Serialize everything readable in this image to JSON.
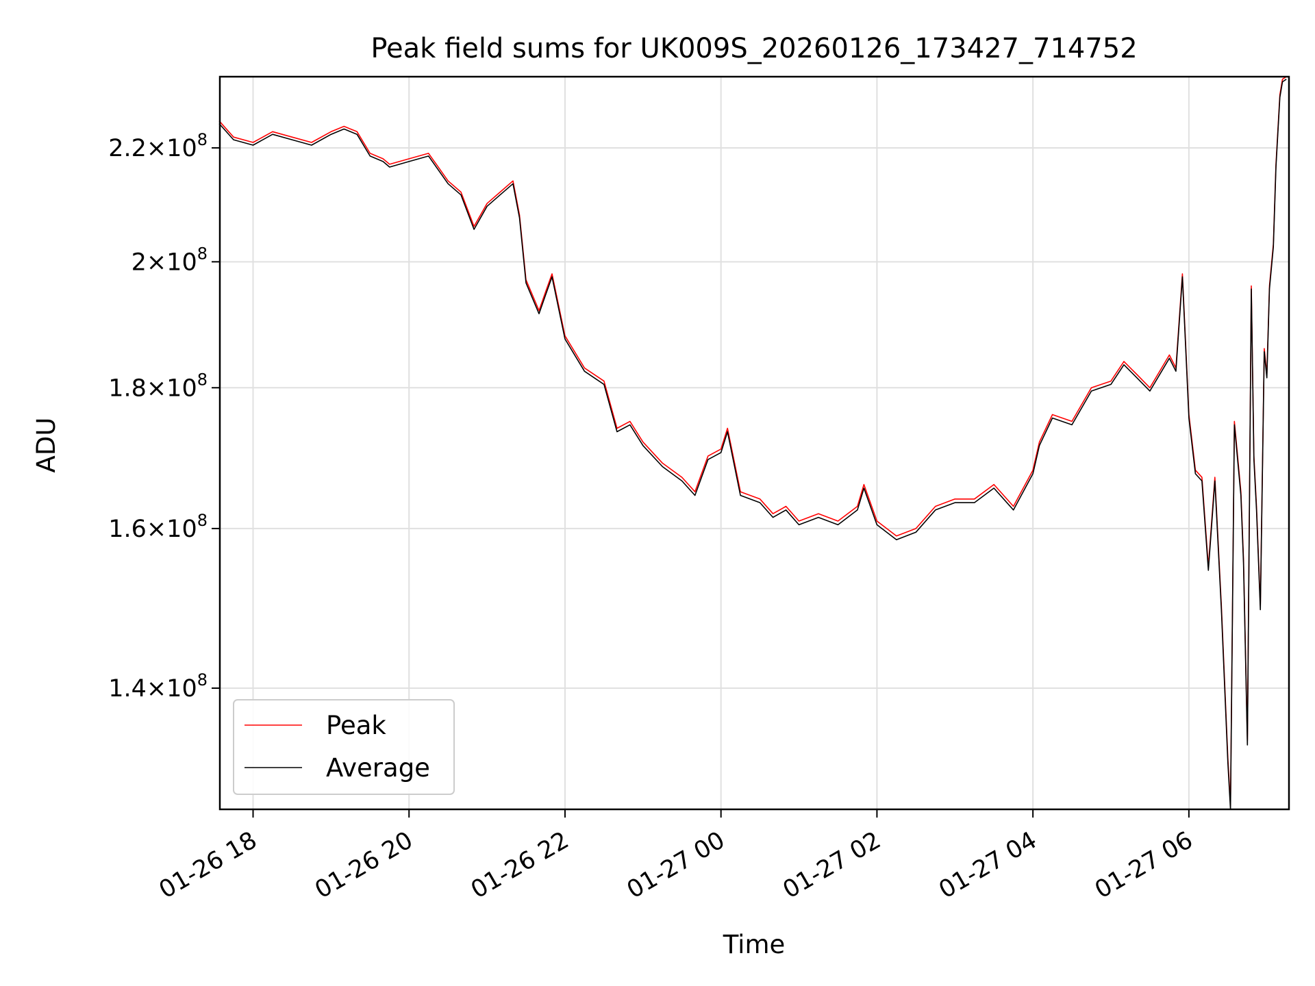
{
  "chart_data": {
    "type": "line",
    "title": "Peak field sums for UK009S_20260126_173427_714752",
    "xlabel": "Time",
    "ylabel": "ADU",
    "y_scale": "log",
    "xlim": [
      "2026-01-26T17:34:27",
      "2026-01-27T07:17:00"
    ],
    "ylim": [
      126500000.0,
      233500000.0
    ],
    "x_ticks": [
      {
        "value": "2026-01-26T18:00",
        "label": "01-26 18"
      },
      {
        "value": "2026-01-26T20:00",
        "label": "01-26 20"
      },
      {
        "value": "2026-01-26T22:00",
        "label": "01-26 22"
      },
      {
        "value": "2026-01-27T00:00",
        "label": "01-27 00"
      },
      {
        "value": "2026-01-27T02:00",
        "label": "01-27 02"
      },
      {
        "value": "2026-01-27T04:00",
        "label": "01-27 04"
      },
      {
        "value": "2026-01-27T06:00",
        "label": "01-27 06"
      }
    ],
    "y_ticks": [
      {
        "value": 140000000.0,
        "mantissa": "1.4",
        "exp": "8"
      },
      {
        "value": 160000000.0,
        "mantissa": "1.6",
        "exp": "8"
      },
      {
        "value": 180000000.0,
        "mantissa": "1.8",
        "exp": "8"
      },
      {
        "value": 200000000.0,
        "mantissa": "2",
        "exp": "8"
      },
      {
        "value": 220000000.0,
        "mantissa": "2.2",
        "exp": "8"
      }
    ],
    "times_symbol": "×",
    "tick_base": "10",
    "grid": true,
    "legend_position": "lower-left",
    "series": [
      {
        "name": "Peak",
        "color": "#ff0000",
        "x": [
          "2026-01-26T17:34",
          "2026-01-26T17:45",
          "2026-01-26T18:00",
          "2026-01-26T18:15",
          "2026-01-26T18:30",
          "2026-01-26T18:45",
          "2026-01-26T19:00",
          "2026-01-26T19:10",
          "2026-01-26T19:20",
          "2026-01-26T19:30",
          "2026-01-26T19:40",
          "2026-01-26T19:45",
          "2026-01-26T20:00",
          "2026-01-26T20:15",
          "2026-01-26T20:30",
          "2026-01-26T20:40",
          "2026-01-26T20:50",
          "2026-01-26T21:00",
          "2026-01-26T21:10",
          "2026-01-26T21:20",
          "2026-01-26T21:25",
          "2026-01-26T21:30",
          "2026-01-26T21:40",
          "2026-01-26T21:45",
          "2026-01-26T21:50",
          "2026-01-26T22:00",
          "2026-01-26T22:15",
          "2026-01-26T22:30",
          "2026-01-26T22:40",
          "2026-01-26T22:50",
          "2026-01-26T23:00",
          "2026-01-26T23:15",
          "2026-01-26T23:30",
          "2026-01-26T23:40",
          "2026-01-26T23:50",
          "2026-01-27T00:00",
          "2026-01-27T00:05",
          "2026-01-27T00:15",
          "2026-01-27T00:30",
          "2026-01-27T00:40",
          "2026-01-27T00:50",
          "2026-01-27T01:00",
          "2026-01-27T01:15",
          "2026-01-27T01:30",
          "2026-01-27T01:45",
          "2026-01-27T01:50",
          "2026-01-27T02:00",
          "2026-01-27T02:15",
          "2026-01-27T02:30",
          "2026-01-27T02:45",
          "2026-01-27T03:00",
          "2026-01-27T03:15",
          "2026-01-27T03:30",
          "2026-01-27T03:45",
          "2026-01-27T04:00",
          "2026-01-27T04:05",
          "2026-01-27T04:15",
          "2026-01-27T04:30",
          "2026-01-27T04:45",
          "2026-01-27T05:00",
          "2026-01-27T05:10",
          "2026-01-27T05:20",
          "2026-01-27T05:30",
          "2026-01-27T05:45",
          "2026-01-27T05:50",
          "2026-01-27T05:55",
          "2026-01-27T06:00",
          "2026-01-27T06:05",
          "2026-01-27T06:10",
          "2026-01-27T06:15",
          "2026-01-27T06:20",
          "2026-01-27T06:25",
          "2026-01-27T06:30",
          "2026-01-27T06:32",
          "2026-01-27T06:35",
          "2026-01-27T06:40",
          "2026-01-27T06:42",
          "2026-01-27T06:45",
          "2026-01-27T06:48",
          "2026-01-27T06:50",
          "2026-01-27T06:52",
          "2026-01-27T06:55",
          "2026-01-27T06:58",
          "2026-01-27T07:00",
          "2026-01-27T07:02",
          "2026-01-27T07:05",
          "2026-01-27T07:07",
          "2026-01-27T07:10",
          "2026-01-27T07:12",
          "2026-01-27T07:15"
        ],
        "y": [
          225000000.0,
          222000000.0,
          221000000.0,
          223000000.0,
          222000000.0,
          221000000.0,
          223000000.0,
          224000000.0,
          223000000.0,
          219000000.0,
          218000000.0,
          217000000.0,
          218000000.0,
          219000000.0,
          214000000.0,
          212000000.0,
          206000000.0,
          210000000.0,
          212000000.0,
          214000000.0,
          208000000.0,
          197000000.0,
          192000000.0,
          195000000.0,
          198000000.0,
          188000000.0,
          183000000.0,
          181000000.0,
          174000000.0,
          175000000.0,
          172000000.0,
          169000000.0,
          167000000.0,
          165000000.0,
          170000000.0,
          171000000.0,
          174000000.0,
          165000000.0,
          164000000.0,
          162000000.0,
          163000000.0,
          161000000.0,
          162000000.0,
          161000000.0,
          163000000.0,
          166000000.0,
          161000000.0,
          159000000.0,
          160000000.0,
          163000000.0,
          164000000.0,
          164000000.0,
          166000000.0,
          163000000.0,
          168000000.0,
          172000000.0,
          176000000.0,
          175000000.0,
          180000000.0,
          181000000.0,
          184000000.0,
          182000000.0,
          180000000.0,
          185000000.0,
          183000000.0,
          198000000.0,
          176000000.0,
          168000000.0,
          167000000.0,
          155000000.0,
          167000000.0,
          150000000.0,
          132000000.0,
          127000000.0,
          175000000.0,
          165000000.0,
          156000000.0,
          134000000.0,
          196000000.0,
          170000000.0,
          163000000.0,
          150000000.0,
          186000000.0,
          182000000.0,
          196000000.0,
          203000000.0,
          217000000.0,
          230000000.0,
          233000000.0,
          233500000.0
        ]
      },
      {
        "name": "Average",
        "color": "#000000",
        "x": [
          "2026-01-26T17:34",
          "2026-01-26T17:45",
          "2026-01-26T18:00",
          "2026-01-26T18:15",
          "2026-01-26T18:30",
          "2026-01-26T18:45",
          "2026-01-26T19:00",
          "2026-01-26T19:10",
          "2026-01-26T19:20",
          "2026-01-26T19:30",
          "2026-01-26T19:40",
          "2026-01-26T19:45",
          "2026-01-26T20:00",
          "2026-01-26T20:15",
          "2026-01-26T20:30",
          "2026-01-26T20:40",
          "2026-01-26T20:50",
          "2026-01-26T21:00",
          "2026-01-26T21:10",
          "2026-01-26T21:20",
          "2026-01-26T21:25",
          "2026-01-26T21:30",
          "2026-01-26T21:40",
          "2026-01-26T21:45",
          "2026-01-26T21:50",
          "2026-01-26T22:00",
          "2026-01-26T22:15",
          "2026-01-26T22:30",
          "2026-01-26T22:40",
          "2026-01-26T22:50",
          "2026-01-26T23:00",
          "2026-01-26T23:15",
          "2026-01-26T23:30",
          "2026-01-26T23:40",
          "2026-01-26T23:50",
          "2026-01-27T00:00",
          "2026-01-27T00:05",
          "2026-01-27T00:15",
          "2026-01-27T00:30",
          "2026-01-27T00:40",
          "2026-01-27T00:50",
          "2026-01-27T01:00",
          "2026-01-27T01:15",
          "2026-01-27T01:30",
          "2026-01-27T01:45",
          "2026-01-27T01:50",
          "2026-01-27T02:00",
          "2026-01-27T02:15",
          "2026-01-27T02:30",
          "2026-01-27T02:45",
          "2026-01-27T03:00",
          "2026-01-27T03:15",
          "2026-01-27T03:30",
          "2026-01-27T03:45",
          "2026-01-27T04:00",
          "2026-01-27T04:05",
          "2026-01-27T04:15",
          "2026-01-27T04:30",
          "2026-01-27T04:45",
          "2026-01-27T05:00",
          "2026-01-27T05:10",
          "2026-01-27T05:20",
          "2026-01-27T05:30",
          "2026-01-27T05:45",
          "2026-01-27T05:50",
          "2026-01-27T05:55",
          "2026-01-27T06:00",
          "2026-01-27T06:05",
          "2026-01-27T06:10",
          "2026-01-27T06:15",
          "2026-01-27T06:20",
          "2026-01-27T06:25",
          "2026-01-27T06:30",
          "2026-01-27T06:32",
          "2026-01-27T06:35",
          "2026-01-27T06:40",
          "2026-01-27T06:42",
          "2026-01-27T06:45",
          "2026-01-27T06:48",
          "2026-01-27T06:50",
          "2026-01-27T06:52",
          "2026-01-27T06:55",
          "2026-01-27T06:58",
          "2026-01-27T07:00",
          "2026-01-27T07:02",
          "2026-01-27T07:05",
          "2026-01-27T07:07",
          "2026-01-27T07:10",
          "2026-01-27T07:12",
          "2026-01-27T07:15"
        ],
        "y": [
          224500000.0,
          221500000.0,
          220500000.0,
          222500000.0,
          221500000.0,
          220500000.0,
          222500000.0,
          223500000.0,
          222500000.0,
          218500000.0,
          217500000.0,
          216500000.0,
          217500000.0,
          218500000.0,
          213500000.0,
          211500000.0,
          205500000.0,
          209500000.0,
          211500000.0,
          213500000.0,
          207500000.0,
          196500000.0,
          191500000.0,
          194500000.0,
          197500000.0,
          187500000.0,
          182500000.0,
          180500000.0,
          173500000.0,
          174500000.0,
          171500000.0,
          168500000.0,
          166500000.0,
          164500000.0,
          169500000.0,
          170500000.0,
          173500000.0,
          164500000.0,
          163500000.0,
          161500000.0,
          162500000.0,
          160500000.0,
          161500000.0,
          160500000.0,
          162500000.0,
          165500000.0,
          160500000.0,
          158500000.0,
          159500000.0,
          162500000.0,
          163500000.0,
          163500000.0,
          165500000.0,
          162500000.0,
          167500000.0,
          171500000.0,
          175500000.0,
          174500000.0,
          179500000.0,
          180500000.0,
          183500000.0,
          181500000.0,
          179500000.0,
          184500000.0,
          182500000.0,
          197500000.0,
          175500000.0,
          167500000.0,
          166500000.0,
          154500000.0,
          166500000.0,
          149500000.0,
          131500000.0,
          126500000.0,
          174500000.0,
          164500000.0,
          155500000.0,
          133500000.0,
          195500000.0,
          169500000.0,
          162500000.0,
          149500000.0,
          185500000.0,
          181500000.0,
          195500000.0,
          202500000.0,
          216500000.0,
          229500000.0,
          232500000.0,
          233000000.0
        ]
      }
    ]
  }
}
